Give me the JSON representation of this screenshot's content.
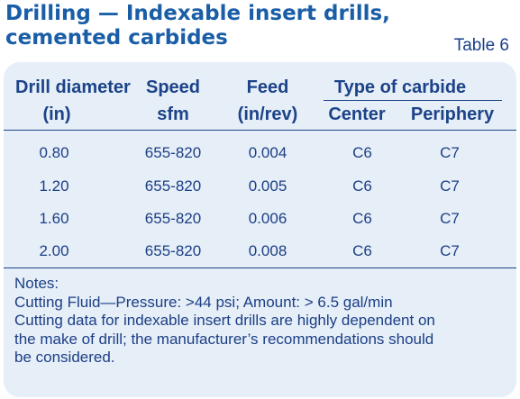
{
  "title_line1": "Drilling — Indexable insert drills,",
  "title_line2": "cemented carbides",
  "table_label": "Table 6",
  "headers": {
    "drill_diameter": "Drill diameter",
    "drill_diameter_unit": "(in)",
    "speed": "Speed",
    "speed_unit": "sfm",
    "feed": "Feed",
    "feed_unit": "(in/rev)",
    "type_of_carbide": "Type of carbide",
    "center": "Center",
    "periphery": "Periphery"
  },
  "rows": [
    {
      "diameter": "0.80",
      "speed": "655-820",
      "feed": "0.004",
      "center": "C6",
      "periphery": "C7"
    },
    {
      "diameter": "1.20",
      "speed": "655-820",
      "feed": "0.005",
      "center": "C6",
      "periphery": "C7"
    },
    {
      "diameter": "1.60",
      "speed": "655-820",
      "feed": "0.006",
      "center": "C6",
      "periphery": "C7"
    },
    {
      "diameter": "2.00",
      "speed": "655-820",
      "feed": "0.008",
      "center": "C6",
      "periphery": "C7"
    }
  ],
  "notes": {
    "heading": "Notes:",
    "line1": "Cutting Fluid—Pressure: >44 psi; Amount: > 6.5 gal/min",
    "line2": "Cutting data for indexable insert drills are highly dependent on",
    "line3": "the make of drill; the manufacturer’s recommendations should",
    "line4": "be considered."
  },
  "colors": {
    "title": "#1a5ea8",
    "text": "#1c3f85",
    "panel": "#e6eef8"
  }
}
